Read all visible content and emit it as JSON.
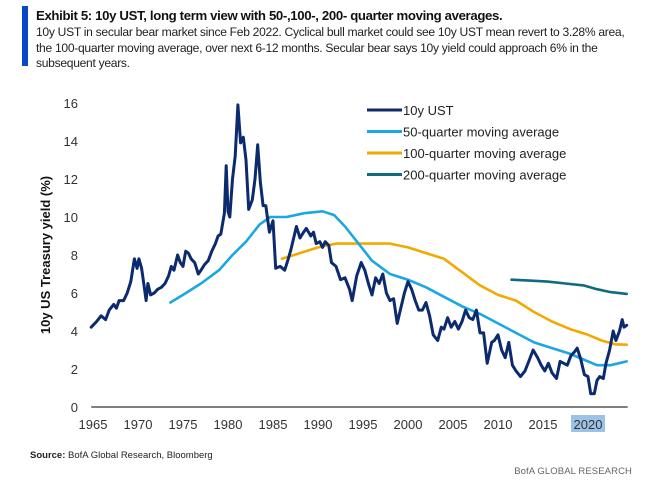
{
  "header": {
    "title": "Exhibit 5: 10y UST, long term view with 50-,100-, 200- quarter moving averages.",
    "subtitle": "10y UST in secular bear market since Feb 2022. Cyclical bull market could see 10y UST mean revert to 3.28% area, the 100-quarter moving average, over next 6-12 months. Secular bear says 10y yield could approach 6% in the subsequent years."
  },
  "footer": {
    "source_label": "Source:",
    "source_text": " BofA Global Research, Bloomberg",
    "brand": "BofA GLOBAL RESEARCH"
  },
  "chart_data": {
    "type": "line",
    "title": "Exhibit 5: 10y UST, long term view with 50-,100-, 200- quarter moving averages.",
    "xlabel": "",
    "ylabel": "10y US Treasury yield (%)",
    "xlim": [
      1964.8,
      2024.3
    ],
    "ylim": [
      0,
      16
    ],
    "x_ticks": [
      1965,
      1970,
      1975,
      1980,
      1985,
      1990,
      1995,
      2000,
      2005,
      2010,
      2015,
      2020
    ],
    "y_ticks": [
      0,
      2,
      4,
      6,
      8,
      10,
      12,
      14,
      16
    ],
    "highlighted_tick": "2020",
    "grid": false,
    "legend_position": "top-right",
    "series": [
      {
        "name": "10y UST",
        "color": "#0c2a6e",
        "points": [
          [
            1964.8,
            4.2
          ],
          [
            1965.4,
            4.5
          ],
          [
            1965.9,
            4.8
          ],
          [
            1966.4,
            4.6
          ],
          [
            1966.8,
            5.1
          ],
          [
            1967.3,
            5.4
          ],
          [
            1967.6,
            5.2
          ],
          [
            1967.9,
            5.6
          ],
          [
            1968.4,
            5.6
          ],
          [
            1968.8,
            6.0
          ],
          [
            1969.2,
            6.6
          ],
          [
            1969.6,
            7.8
          ],
          [
            1969.9,
            7.3
          ],
          [
            1970.1,
            7.8
          ],
          [
            1970.4,
            7.3
          ],
          [
            1970.7,
            6.3
          ],
          [
            1970.9,
            5.6
          ],
          [
            1971.1,
            6.5
          ],
          [
            1971.4,
            5.9
          ],
          [
            1971.8,
            6.0
          ],
          [
            1972.2,
            6.2
          ],
          [
            1972.6,
            6.3
          ],
          [
            1973.0,
            6.5
          ],
          [
            1973.4,
            6.9
          ],
          [
            1973.7,
            7.4
          ],
          [
            1974.0,
            7.2
          ],
          [
            1974.4,
            8.0
          ],
          [
            1974.7,
            7.6
          ],
          [
            1975.0,
            7.4
          ],
          [
            1975.3,
            8.2
          ],
          [
            1975.6,
            8.1
          ],
          [
            1975.9,
            7.8
          ],
          [
            1976.3,
            7.6
          ],
          [
            1976.7,
            7.0
          ],
          [
            1977.0,
            7.2
          ],
          [
            1977.4,
            7.5
          ],
          [
            1977.8,
            7.7
          ],
          [
            1978.2,
            8.2
          ],
          [
            1978.6,
            8.6
          ],
          [
            1978.9,
            9.0
          ],
          [
            1979.2,
            9.1
          ],
          [
            1979.6,
            10.2
          ],
          [
            1979.8,
            12.7
          ],
          [
            1980.0,
            10.3
          ],
          [
            1980.2,
            10.0
          ],
          [
            1980.5,
            12.0
          ],
          [
            1980.8,
            13.2
          ],
          [
            1981.1,
            15.9
          ],
          [
            1981.4,
            13.9
          ],
          [
            1981.7,
            14.2
          ],
          [
            1982.0,
            13.0
          ],
          [
            1982.3,
            10.4
          ],
          [
            1982.7,
            10.9
          ],
          [
            1983.0,
            12.0
          ],
          [
            1983.3,
            13.8
          ],
          [
            1983.6,
            11.8
          ],
          [
            1983.9,
            10.6
          ],
          [
            1984.2,
            10.6
          ],
          [
            1984.6,
            9.2
          ],
          [
            1985.0,
            9.8
          ],
          [
            1985.3,
            7.3
          ],
          [
            1985.8,
            7.4
          ],
          [
            1986.3,
            7.2
          ],
          [
            1986.7,
            7.8
          ],
          [
            1987.0,
            8.3
          ],
          [
            1987.6,
            9.5
          ],
          [
            1988.0,
            8.9
          ],
          [
            1988.4,
            9.2
          ],
          [
            1988.7,
            9.4
          ],
          [
            1989.2,
            9.0
          ],
          [
            1989.5,
            9.2
          ],
          [
            1989.8,
            8.6
          ],
          [
            1990.2,
            8.7
          ],
          [
            1990.5,
            8.4
          ],
          [
            1990.8,
            8.7
          ],
          [
            1991.2,
            8.5
          ],
          [
            1991.5,
            7.6
          ],
          [
            1992.0,
            7.4
          ],
          [
            1992.5,
            6.7
          ],
          [
            1993.0,
            6.8
          ],
          [
            1993.5,
            6.2
          ],
          [
            1993.8,
            5.6
          ],
          [
            1994.3,
            6.9
          ],
          [
            1994.8,
            7.6
          ],
          [
            1995.2,
            7.2
          ],
          [
            1995.6,
            6.5
          ],
          [
            1996.0,
            5.9
          ],
          [
            1996.4,
            6.8
          ],
          [
            1996.8,
            6.5
          ],
          [
            1997.2,
            7.0
          ],
          [
            1997.6,
            6.0
          ],
          [
            1998.0,
            5.6
          ],
          [
            1998.4,
            5.7
          ],
          [
            1998.8,
            4.4
          ],
          [
            1999.2,
            5.2
          ],
          [
            1999.6,
            6.0
          ],
          [
            2000.0,
            6.6
          ],
          [
            2000.4,
            6.2
          ],
          [
            2000.8,
            5.6
          ],
          [
            2001.2,
            5.1
          ],
          [
            2001.6,
            5.1
          ],
          [
            2002.0,
            5.5
          ],
          [
            2002.4,
            4.8
          ],
          [
            2002.8,
            3.8
          ],
          [
            2003.3,
            3.5
          ],
          [
            2003.7,
            4.2
          ],
          [
            2004.0,
            4.1
          ],
          [
            2004.4,
            4.7
          ],
          [
            2004.8,
            4.2
          ],
          [
            2005.2,
            4.5
          ],
          [
            2005.6,
            4.1
          ],
          [
            2006.0,
            4.5
          ],
          [
            2006.4,
            5.1
          ],
          [
            2006.8,
            4.7
          ],
          [
            2007.2,
            4.6
          ],
          [
            2007.6,
            5.1
          ],
          [
            2008.0,
            3.9
          ],
          [
            2008.4,
            3.9
          ],
          [
            2008.8,
            2.3
          ],
          [
            2009.3,
            3.4
          ],
          [
            2009.6,
            3.5
          ],
          [
            2010.0,
            3.8
          ],
          [
            2010.4,
            3.0
          ],
          [
            2010.8,
            2.6
          ],
          [
            2011.2,
            3.4
          ],
          [
            2011.6,
            2.2
          ],
          [
            2012.0,
            1.9
          ],
          [
            2012.5,
            1.6
          ],
          [
            2013.0,
            1.9
          ],
          [
            2013.5,
            2.5
          ],
          [
            2013.9,
            3.0
          ],
          [
            2014.4,
            2.6
          ],
          [
            2014.8,
            2.2
          ],
          [
            2015.2,
            1.9
          ],
          [
            2015.6,
            2.3
          ],
          [
            2016.0,
            1.8
          ],
          [
            2016.5,
            1.5
          ],
          [
            2016.9,
            2.4
          ],
          [
            2017.3,
            2.3
          ],
          [
            2017.7,
            2.2
          ],
          [
            2018.1,
            2.7
          ],
          [
            2018.5,
            2.9
          ],
          [
            2018.8,
            3.1
          ],
          [
            2019.2,
            2.5
          ],
          [
            2019.6,
            1.7
          ],
          [
            2020.0,
            1.6
          ],
          [
            2020.3,
            0.7
          ],
          [
            2020.7,
            0.7
          ],
          [
            2021.0,
            1.4
          ],
          [
            2021.3,
            1.6
          ],
          [
            2021.7,
            1.5
          ],
          [
            2022.0,
            2.3
          ],
          [
            2022.4,
            3.0
          ],
          [
            2022.8,
            4.0
          ],
          [
            2023.1,
            3.5
          ],
          [
            2023.5,
            4.0
          ],
          [
            2023.8,
            4.6
          ],
          [
            2024.0,
            4.2
          ],
          [
            2024.3,
            4.3
          ]
        ]
      },
      {
        "name": "50-quarter moving average",
        "color": "#1ba7e2",
        "points": [
          [
            1973.6,
            5.5
          ],
          [
            1975.0,
            5.9
          ],
          [
            1977.0,
            6.5
          ],
          [
            1979.0,
            7.2
          ],
          [
            1980.5,
            8.0
          ],
          [
            1982.0,
            8.7
          ],
          [
            1983.5,
            9.6
          ],
          [
            1984.7,
            10.0
          ],
          [
            1986.5,
            10.0
          ],
          [
            1988.5,
            10.2
          ],
          [
            1990.5,
            10.3
          ],
          [
            1991.8,
            10.1
          ],
          [
            1993.0,
            9.5
          ],
          [
            1994.5,
            8.6
          ],
          [
            1996.0,
            7.7
          ],
          [
            1998.0,
            7.0
          ],
          [
            2000.0,
            6.7
          ],
          [
            2002.0,
            6.3
          ],
          [
            2004.0,
            5.8
          ],
          [
            2006.0,
            5.3
          ],
          [
            2008.0,
            4.9
          ],
          [
            2010.0,
            4.4
          ],
          [
            2012.0,
            3.9
          ],
          [
            2014.0,
            3.4
          ],
          [
            2016.0,
            3.1
          ],
          [
            2018.0,
            2.8
          ],
          [
            2019.5,
            2.5
          ],
          [
            2021.0,
            2.2
          ],
          [
            2022.5,
            2.2
          ],
          [
            2024.3,
            2.4
          ]
        ]
      },
      {
        "name": "100-quarter moving average",
        "color": "#f2a900",
        "points": [
          [
            1986.0,
            7.8
          ],
          [
            1988.0,
            8.1
          ],
          [
            1990.0,
            8.4
          ],
          [
            1992.0,
            8.6
          ],
          [
            1994.0,
            8.6
          ],
          [
            1996.0,
            8.6
          ],
          [
            1998.0,
            8.6
          ],
          [
            2000.0,
            8.4
          ],
          [
            2002.0,
            8.1
          ],
          [
            2004.0,
            7.8
          ],
          [
            2006.0,
            7.1
          ],
          [
            2008.0,
            6.4
          ],
          [
            2010.0,
            5.9
          ],
          [
            2012.0,
            5.6
          ],
          [
            2014.0,
            5.0
          ],
          [
            2016.0,
            4.5
          ],
          [
            2018.0,
            4.1
          ],
          [
            2020.0,
            3.8
          ],
          [
            2021.5,
            3.5
          ],
          [
            2023.0,
            3.3
          ],
          [
            2024.3,
            3.28
          ]
        ]
      },
      {
        "name": "200-quarter moving average",
        "color": "#0f6b80",
        "points": [
          [
            2011.5,
            6.7
          ],
          [
            2013.5,
            6.65
          ],
          [
            2015.5,
            6.6
          ],
          [
            2017.5,
            6.5
          ],
          [
            2019.5,
            6.4
          ],
          [
            2021.0,
            6.2
          ],
          [
            2022.5,
            6.05
          ],
          [
            2024.3,
            5.95
          ]
        ]
      }
    ]
  }
}
